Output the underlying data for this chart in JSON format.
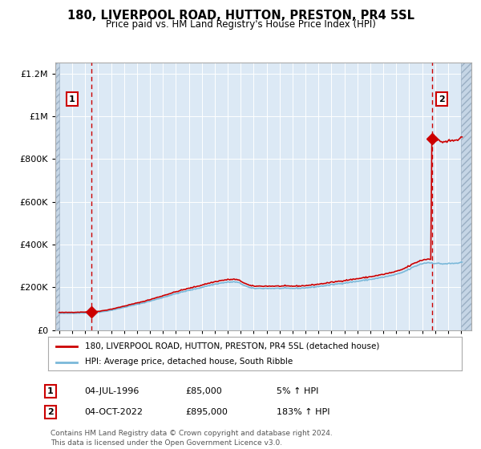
{
  "title": "180, LIVERPOOL ROAD, HUTTON, PRESTON, PR4 5SL",
  "subtitle": "Price paid vs. HM Land Registry's House Price Index (HPI)",
  "legend_line1": "180, LIVERPOOL ROAD, HUTTON, PRESTON, PR4 5SL (detached house)",
  "legend_line2": "HPI: Average price, detached house, South Ribble",
  "annotation1_date": "04-JUL-1996",
  "annotation1_price": "£85,000",
  "annotation1_hpi": "5% ↑ HPI",
  "annotation2_date": "04-OCT-2022",
  "annotation2_price": "£895,000",
  "annotation2_hpi": "183% ↑ HPI",
  "footer": "Contains HM Land Registry data © Crown copyright and database right 2024.\nThis data is licensed under the Open Government Licence v3.0.",
  "sale1_year": 1996.5,
  "sale1_value": 85000,
  "sale2_year": 2022.75,
  "sale2_value": 895000,
  "hpi_color": "#7ab8d9",
  "price_color": "#cc0000",
  "bg_color": "#dce9f5",
  "ylim": [
    0,
    1250000
  ],
  "xlim_start": 1993.7,
  "xlim_end": 2025.8
}
